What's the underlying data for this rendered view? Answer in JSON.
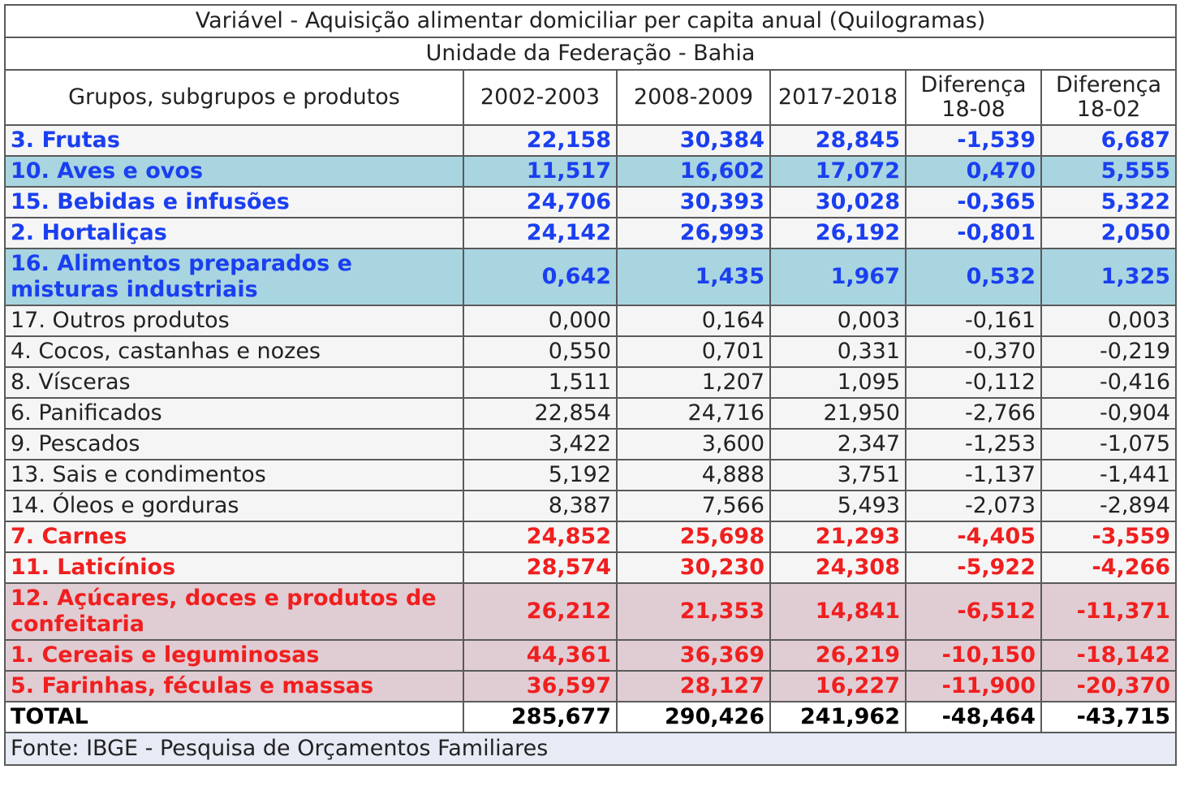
{
  "table": {
    "title": "Variável - Aquisição alimentar domiciliar per capita anual (Quilogramas)",
    "subtitle": "Unidade da Federação - Bahia",
    "headers": [
      "Grupos, subgrupos e produtos",
      "2002-2003",
      "2008-2009",
      "2017-2018",
      "Diferença\n18-08",
      "Diferença\n18-02"
    ],
    "rows": [
      {
        "name": "3. Frutas",
        "values": [
          "22,158",
          "30,384",
          "28,845",
          "-1,539",
          "6,687"
        ],
        "color": "#1a3ff0",
        "bg": "#f5f5f5",
        "bold": true
      },
      {
        "name": "10. Aves e ovos",
        "values": [
          "11,517",
          "16,602",
          "17,072",
          "0,470",
          "5,555"
        ],
        "color": "#1a3ff0",
        "bg": "#a9d5e0",
        "bold": true
      },
      {
        "name": "15. Bebidas e infusões",
        "values": [
          "24,706",
          "30,393",
          "30,028",
          "-0,365",
          "5,322"
        ],
        "color": "#1a3ff0",
        "bg": "#f5f5f5",
        "bold": true
      },
      {
        "name": "2. Hortaliças",
        "values": [
          "24,142",
          "26,993",
          "26,192",
          "-0,801",
          "2,050"
        ],
        "color": "#1a3ff0",
        "bg": "#f5f5f5",
        "bold": true
      },
      {
        "name": "16. Alimentos preparados e misturas industriais",
        "values": [
          "0,642",
          "1,435",
          "1,967",
          "0,532",
          "1,325"
        ],
        "color": "#1a3ff0",
        "bg": "#a9d5e0",
        "bold": true,
        "tall": true
      },
      {
        "name": "17. Outros produtos",
        "values": [
          "0,000",
          "0,164",
          "0,003",
          "-0,161",
          "0,003"
        ],
        "color": "#222222",
        "bg": "#f5f5f5",
        "bold": false
      },
      {
        "name": "4. Cocos, castanhas e nozes",
        "values": [
          "0,550",
          "0,701",
          "0,331",
          "-0,370",
          "-0,219"
        ],
        "color": "#222222",
        "bg": "#f5f5f5",
        "bold": false
      },
      {
        "name": "8. Vísceras",
        "values": [
          "1,511",
          "1,207",
          "1,095",
          "-0,112",
          "-0,416"
        ],
        "color": "#222222",
        "bg": "#f5f5f5",
        "bold": false
      },
      {
        "name": "6. Panificados",
        "values": [
          "22,854",
          "24,716",
          "21,950",
          "-2,766",
          "-0,904"
        ],
        "color": "#222222",
        "bg": "#f5f5f5",
        "bold": false
      },
      {
        "name": "9. Pescados",
        "values": [
          "3,422",
          "3,600",
          "2,347",
          "-1,253",
          "-1,075"
        ],
        "color": "#222222",
        "bg": "#f5f5f5",
        "bold": false
      },
      {
        "name": "13. Sais e condimentos",
        "values": [
          "5,192",
          "4,888",
          "3,751",
          "-1,137",
          "-1,441"
        ],
        "color": "#222222",
        "bg": "#f5f5f5",
        "bold": false
      },
      {
        "name": "14. Óleos e gorduras",
        "values": [
          "8,387",
          "7,566",
          "5,493",
          "-2,073",
          "-2,894"
        ],
        "color": "#222222",
        "bg": "#f5f5f5",
        "bold": false
      },
      {
        "name": "7. Carnes",
        "values": [
          "24,852",
          "25,698",
          "21,293",
          "-4,405",
          "-3,559"
        ],
        "color": "#f01f1f",
        "bg": "#f5f5f5",
        "bold": true
      },
      {
        "name": "11. Laticínios",
        "values": [
          "28,574",
          "30,230",
          "24,308",
          "-5,922",
          "-4,266"
        ],
        "color": "#f01f1f",
        "bg": "#f5f5f5",
        "bold": true
      },
      {
        "name": "12. Açúcares, doces e produtos de confeitaria",
        "values": [
          "26,212",
          "21,353",
          "14,841",
          "-6,512",
          "-11,371"
        ],
        "color": "#f01f1f",
        "bg": "#e0cdd4",
        "bold": true,
        "tall": true
      },
      {
        "name": "1. Cereais e leguminosas",
        "values": [
          "44,361",
          "36,369",
          "26,219",
          "-10,150",
          "-18,142"
        ],
        "color": "#f01f1f",
        "bg": "#e0cdd4",
        "bold": true
      },
      {
        "name": "5. Farinhas, féculas e massas",
        "values": [
          "36,597",
          "28,127",
          "16,227",
          "-11,900",
          "-20,370"
        ],
        "color": "#f01f1f",
        "bg": "#e0cdd4",
        "bold": true
      }
    ],
    "total": {
      "name": "TOTAL",
      "values": [
        "285,677",
        "290,426",
        "241,962",
        "-48,464",
        "-43,715"
      ]
    },
    "footer": "Fonte: IBGE - Pesquisa de Orçamentos Familiares",
    "footer_bg": "#e6ebf5"
  }
}
